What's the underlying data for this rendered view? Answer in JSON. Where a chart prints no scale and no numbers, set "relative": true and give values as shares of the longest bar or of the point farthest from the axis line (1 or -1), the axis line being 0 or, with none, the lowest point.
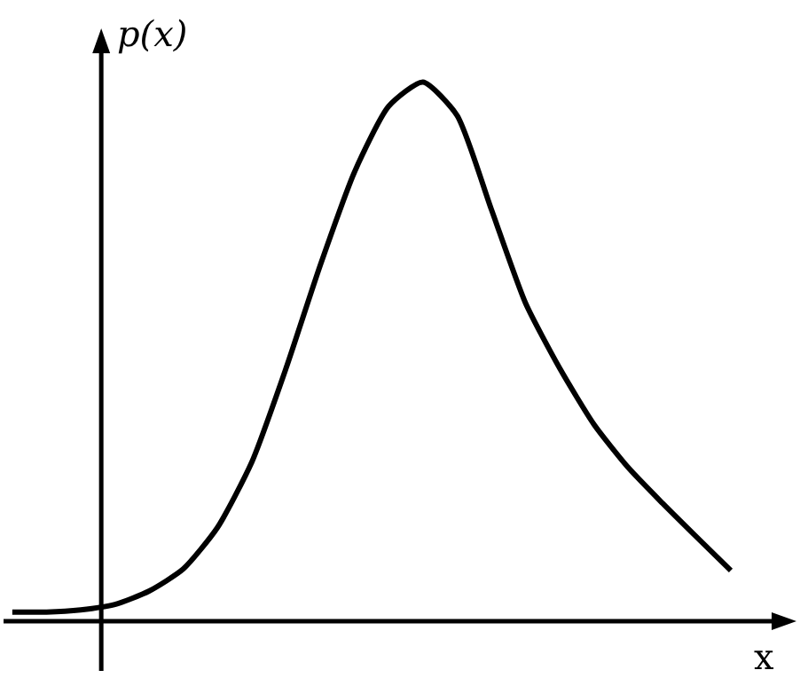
{
  "chart_data": {
    "type": "line",
    "relative": true,
    "xlabel": "x",
    "ylabel": "p(x)",
    "categories": [
      null,
      null,
      null,
      null,
      null,
      null,
      null,
      null,
      null,
      null,
      null,
      null,
      null,
      null,
      null,
      null,
      null,
      null,
      null,
      null,
      null,
      null
    ],
    "series": [
      {
        "color": "#000000",
        "values": [
          0.017,
          0.017,
          0.021,
          0.031,
          0.056,
          0.097,
          0.174,
          0.295,
          0.469,
          0.66,
          0.833,
          0.955,
          1,
          0.938,
          0.764,
          0.59,
          0.469,
          0.365,
          0.285,
          0.219,
          0.156,
          0.094
        ]
      }
    ],
    "marker": "none",
    "line_style": "solid",
    "grid": false,
    "legend": false
  }
}
